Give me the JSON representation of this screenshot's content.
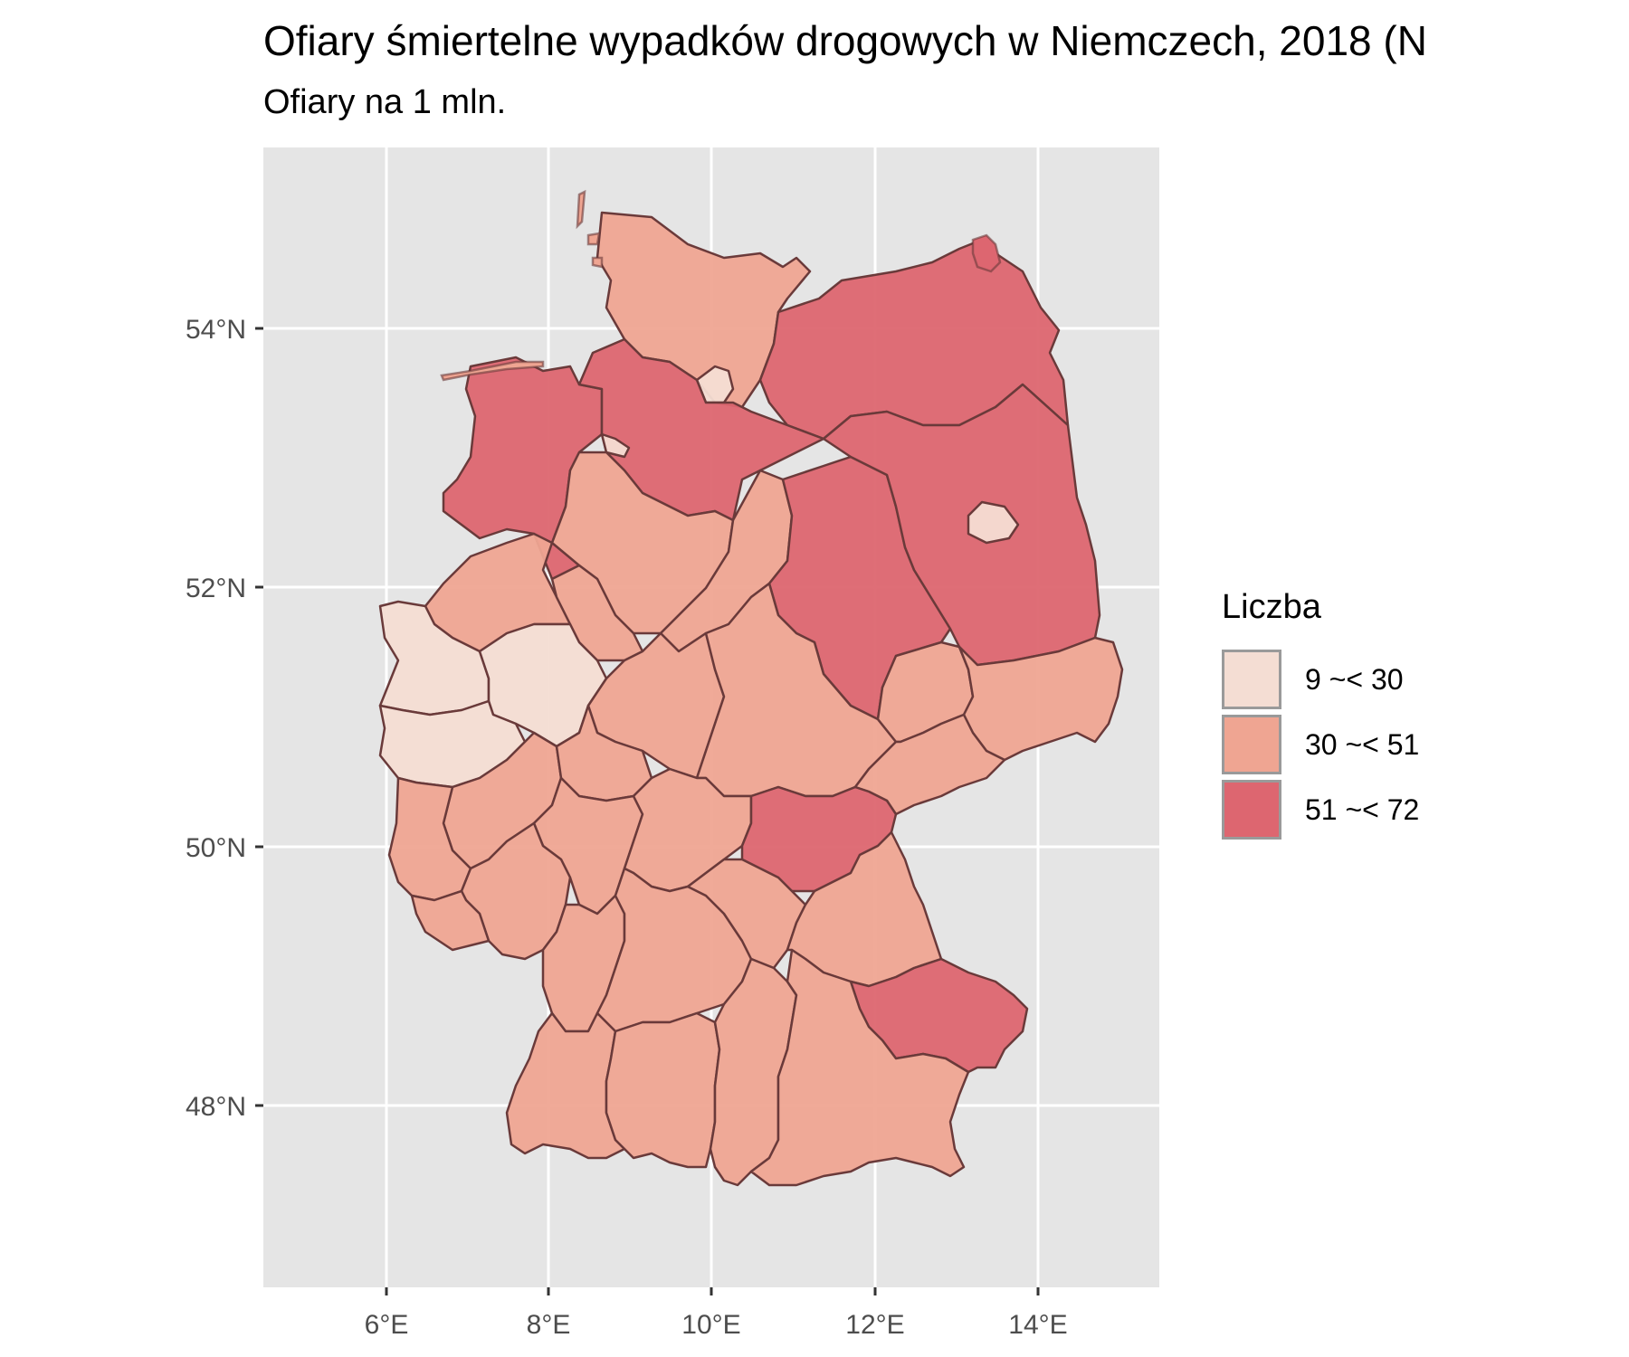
{
  "title": "Ofiary śmiertelne wypadków drogowych w Niemczech, 2018 (N",
  "subtitle": "Ofiary na 1 mln.",
  "axes": {
    "x_ticks": [
      "6°E",
      "8°E",
      "10°E",
      "12°E",
      "14°E"
    ],
    "y_ticks": [
      "54°N",
      "52°N",
      "50°N",
      "48°N"
    ]
  },
  "legend": {
    "title": "Liczba",
    "items": [
      {
        "label": "9 ~< 30",
        "color": "#f4ddd3"
      },
      {
        "label": "30 ~< 51",
        "color": "#efa592"
      },
      {
        "label": "51 ~< 72",
        "color": "#dd6670"
      }
    ]
  },
  "colors": {
    "panel": "#e5e5e5",
    "grid": "#ffffff",
    "border": "#6a3a3a"
  }
}
